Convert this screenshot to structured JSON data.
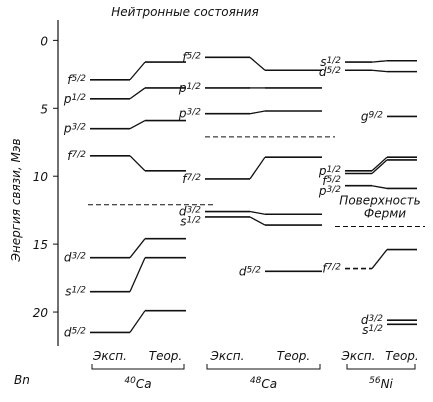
{
  "chart_data": {
    "type": "level",
    "title": "Нейтронные состояния",
    "y_label": "Энергия связи, Мэв",
    "y_corner_label": "Bn",
    "ylim": [
      -1.5,
      22.5
    ],
    "yticks": [
      0,
      5,
      10,
      15,
      20
    ],
    "groups": [
      {
        "mass": "40",
        "symbol": "Ca",
        "exp_label": "Эксп.",
        "theor_label": "Теор.",
        "fermi": 12.1,
        "levels": [
          {
            "orbital": "f",
            "j": "5/2",
            "exp": 2.9,
            "theor": 1.6
          },
          {
            "orbital": "p",
            "j": "1/2",
            "exp": 4.3,
            "theor": 3.5
          },
          {
            "orbital": "p",
            "j": "3/2",
            "exp": 6.5,
            "theor": 5.9
          },
          {
            "orbital": "f",
            "j": "7/2",
            "exp": 8.5,
            "theor": 9.6
          },
          {
            "orbital": "d",
            "j": "3/2",
            "exp": 16.0,
            "theor": 14.6
          },
          {
            "orbital": "s",
            "j": "1/2",
            "exp": 18.5,
            "theor": 16.0
          },
          {
            "orbital": "d",
            "j": "5/2",
            "exp": 21.5,
            "theor": 19.9
          }
        ]
      },
      {
        "mass": "48",
        "symbol": "Ca",
        "exp_label": "Эксп.",
        "theor_label": "Теор.",
        "fermi": 7.1,
        "levels": [
          {
            "orbital": "f",
            "j": "5/2",
            "exp": 1.25,
            "theor": 2.2
          },
          {
            "orbital": "p",
            "j": "1/2",
            "exp": 3.5,
            "theor": 3.5
          },
          {
            "orbital": "p",
            "j": "3/2",
            "exp": 5.4,
            "theor": 5.2
          },
          {
            "orbital": "f",
            "j": "7/2",
            "exp": 10.2,
            "theor": 8.6
          },
          {
            "orbital": "d",
            "j": "3/2",
            "exp": 12.6,
            "theor": 12.8
          },
          {
            "orbital": "s",
            "j": "1/2",
            "exp": 13.0,
            "theor": 13.6
          },
          {
            "orbital": "d",
            "j": "5/2",
            "exp": null,
            "theor": 17.0
          }
        ]
      },
      {
        "mass": "56",
        "symbol": "Ni",
        "exp_label": "Эксп.",
        "theor_label": "Теор.",
        "fermi": 13.7,
        "fermi_label": [
          "Поверхность",
          "Ферми"
        ],
        "levels": [
          {
            "orbital": "s",
            "j": "1/2",
            "exp": 1.6,
            "theor": 1.5
          },
          {
            "orbital": "d",
            "j": "5/2",
            "exp": 2.2,
            "theor": 2.3
          },
          {
            "orbital": "g",
            "j": "9/2",
            "exp": null,
            "theor": 5.6
          },
          {
            "orbital": "p",
            "j": "1/2",
            "exp": 9.6,
            "theor": 8.6
          },
          {
            "orbital": "f",
            "j": "5/2",
            "exp": 9.8,
            "theor": 8.8
          },
          {
            "orbital": "p",
            "j": "3/2",
            "exp": 10.7,
            "theor": 10.9
          },
          {
            "orbital": "f",
            "j": "7/2",
            "exp": 16.8,
            "theor": 15.4,
            "exp_dashed": true
          },
          {
            "orbital": "d",
            "j": "3/2",
            "exp": null,
            "theor": 20.6
          },
          {
            "orbital": "s",
            "j": "1/2",
            "exp": null,
            "theor": 20.9
          }
        ]
      }
    ]
  }
}
